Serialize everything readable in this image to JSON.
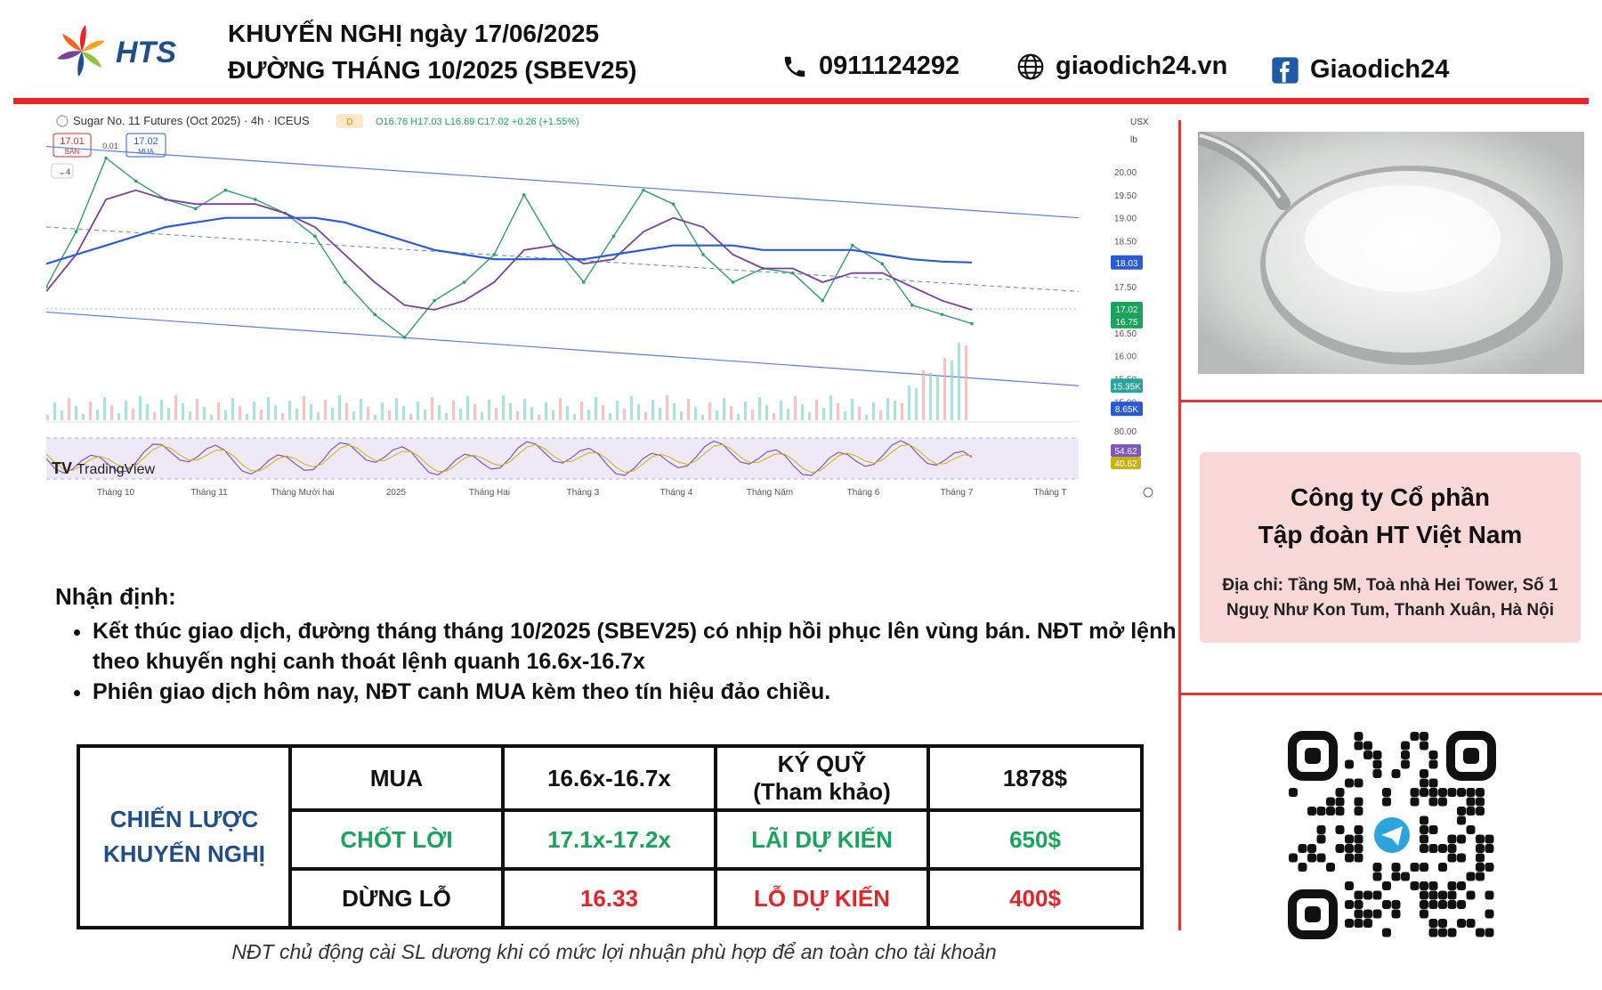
{
  "brand": {
    "name": "HTS",
    "colors": {
      "red": "#e8262a",
      "blue": "#1f4e8c",
      "green": "#1aa35b"
    }
  },
  "header": {
    "title_line1": "KHUYẾN NGHỊ ngày 17/06/2025",
    "title_line2": "ĐƯỜNG THÁNG 10/2025 (SBEV25)",
    "phone": "0911124292",
    "website": "giaodich24.vn",
    "facebook": "Giaodich24",
    "icons": [
      "phone-icon",
      "globe-icon",
      "facebook-icon"
    ]
  },
  "chart_header": {
    "symbol": "Sugar No. 11 Futures (Oct 2025) · 4h · ICEUS",
    "badge": "D",
    "ohlc": "O16.76 H17.03 L16.69 C17.02 +0.26 (+1.55%)",
    "sell_price": "17.01",
    "sell_label": "BÁN",
    "spread": "0.01",
    "buy_price": "17.02",
    "buy_label": "MUA",
    "indicator_count": "4",
    "currency": "USX",
    "unit": "lb",
    "watermark": "TradingView"
  },
  "chart_data": {
    "type": "line",
    "title": "Sugar No. 11 Futures (Oct 2025) · 4h · ICEUS",
    "x_ticks": [
      "Tháng 10",
      "Tháng 11",
      "Tháng Mười hai",
      "2025",
      "Tháng Hai",
      "Tháng 3",
      "Tháng 4",
      "Tháng Năm",
      "Tháng 6",
      "Tháng 7",
      "Tháng T"
    ],
    "y_ticks": [
      "20.00",
      "19.50",
      "19.00",
      "18.50",
      "17.50",
      "16.50",
      "16.00",
      "15.50",
      "15.00"
    ],
    "ylim": [
      14.6,
      20.6
    ],
    "price_labels": [
      {
        "label": "18.03",
        "value": 18.03,
        "color": "#2a5bd7"
      },
      {
        "label": "17.02",
        "value": 17.02,
        "color": "#1aa35b"
      },
      {
        "label": "16.75",
        "value": 16.75,
        "color": "#1aa35b"
      },
      {
        "label": "15.35K",
        "value": 15.35,
        "color": "#26a69a"
      },
      {
        "label": "8.65K",
        "value": 14.85,
        "color": "#2a5bd7"
      }
    ],
    "rsi_ticks": [
      "80.00"
    ],
    "rsi_labels": [
      {
        "label": "54.62",
        "color": "#7e57c2"
      },
      {
        "label": "40.62",
        "color": "#c9b30a"
      }
    ],
    "series": [
      {
        "name": "Price",
        "values": [
          17.5,
          18.7,
          20.3,
          19.8,
          19.4,
          19.2,
          19.6,
          19.4,
          19.1,
          18.6,
          17.6,
          16.9,
          16.4,
          17.2,
          17.6,
          18.2,
          19.5,
          18.4,
          17.6,
          18.6,
          19.6,
          19.3,
          18.2,
          17.6,
          17.9,
          17.8,
          17.2,
          18.4,
          18.0,
          17.1,
          16.9,
          16.7
        ]
      },
      {
        "name": "MA fast",
        "values": [
          17.4,
          18.2,
          19.4,
          19.6,
          19.4,
          19.3,
          19.3,
          19.3,
          19.1,
          18.8,
          18.2,
          17.6,
          17.1,
          17.0,
          17.2,
          17.6,
          18.3,
          18.4,
          18.0,
          18.1,
          18.7,
          19.0,
          18.8,
          18.2,
          17.9,
          17.9,
          17.6,
          17.8,
          17.8,
          17.5,
          17.2,
          17.0
        ]
      },
      {
        "name": "MA slow",
        "values": [
          18.0,
          18.2,
          18.4,
          18.6,
          18.8,
          18.9,
          19.0,
          19.0,
          19.0,
          19.0,
          18.9,
          18.7,
          18.5,
          18.3,
          18.2,
          18.1,
          18.1,
          18.1,
          18.1,
          18.2,
          18.3,
          18.4,
          18.4,
          18.4,
          18.3,
          18.3,
          18.3,
          18.3,
          18.2,
          18.1,
          18.05,
          18.03
        ]
      }
    ]
  },
  "right": {
    "company_line1": "Công ty Cổ phần",
    "company_line2": "Tập đoàn HT Việt Nam",
    "address_line1": "Địa chỉ: Tầng 5M, Toà nhà Hei Tower, Số 1",
    "address_line2": "Nguỵ Như Kon Tum, Thanh Xuân, Hà Nội"
  },
  "notes": {
    "heading": "Nhận định:",
    "bullet1": "Kết thúc giao dịch, đường tháng tháng 10/2025 (SBEV25) có nhịp hồi phục lên vùng bán. NĐT mở lệnh theo khuyến nghị canh thoát lệnh quanh 16.6x-16.7x",
    "bullet2": "Phiên giao dịch hôm nay, NĐT canh MUA kèm theo tín hiệu đảo chiều."
  },
  "strategy": {
    "label_line1": "CHIẾN LƯỢC",
    "label_line2": "KHUYẾN NGHỊ",
    "action": "MUA",
    "entry": "16.6x-16.7x",
    "margin_line1": "KÝ QUỸ",
    "margin_line2": "(Tham khảo)",
    "margin_value": "1878$",
    "tp_label": "CHỐT LỜI",
    "tp_value": "17.1x-17.2x",
    "profit_label": "LÃI DỰ KIẾN",
    "profit_value": "650$",
    "sl_label": "DỪNG LỖ",
    "sl_value": "16.33",
    "loss_label": "LỖ DỰ KIẾN",
    "loss_value": "400$"
  },
  "footnote": "NĐT chủ động cài SL dương khi có mức lợi nhuận phù hợp để an toàn cho tài khoản"
}
